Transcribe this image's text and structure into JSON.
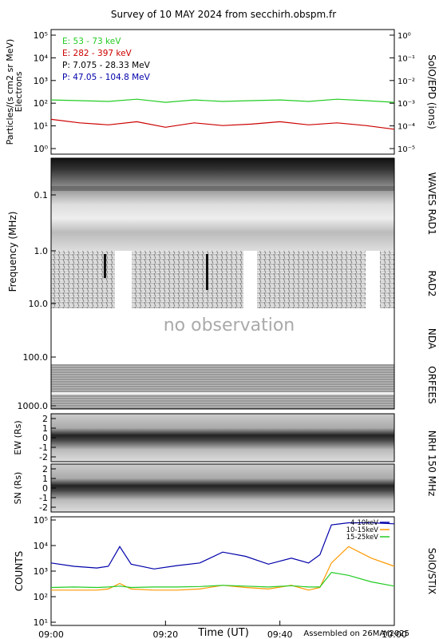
{
  "title": "Survey of 10 MAY 2024 from secchirh.obspm.fr",
  "footer": {
    "xlabel": "Time (UT)",
    "assembled": "Assembled on 26MAY2025"
  },
  "colors": {
    "green": "#22cc22",
    "red": "#cc0000",
    "black": "#000000",
    "blue": "#0000aa",
    "orange": "#ff9900"
  },
  "panels": {
    "epd": {
      "ylabel_left_1": "Particles/(s cm2 sr MeV)",
      "ylabel_left_2": "Electrons",
      "ylabel_right": "SolO/EPD (ions)",
      "legend": [
        {
          "text": "E: 53 - 73 keV",
          "color": "#22cc22"
        },
        {
          "text": "E: 282 - 397 keV",
          "color": "#cc0000"
        },
        {
          "text": "P: 7.075 - 28.33 MeV",
          "color": "#000000"
        },
        {
          "text": "P: 47.05 - 104.8 MeV",
          "color": "#0000aa"
        }
      ],
      "left_ticks": [
        "10⁰",
        "10¹",
        "10²",
        "10³",
        "10⁴",
        "10⁵"
      ],
      "right_ticks": [
        "10⁻⁵",
        "10⁻⁴",
        "10⁻³",
        "10⁻²",
        "10⁻¹",
        "10⁰"
      ]
    },
    "radio": {
      "ylabel": "Frequency (MHz)",
      "freq_ticks": [
        "0.1",
        "1.0",
        "10.0",
        "100.0",
        "1000.0"
      ],
      "no_obs": "no observation",
      "instr": [
        "WAVES RAD1",
        "RAD2",
        "NDA",
        "ORFEES"
      ]
    },
    "nrh": {
      "ew_label": "EW (Rs)",
      "sn_label": "SN (Rs)",
      "ticks": [
        "2",
        "1",
        "0",
        "-1",
        "-2"
      ],
      "instr": "NRH 150 MHz"
    },
    "stix": {
      "ylabel": "COUNTS",
      "instr": "SolO/STIX",
      "ticks": [
        "10¹",
        "10²",
        "10³",
        "10⁴",
        "10⁵"
      ],
      "legend": [
        {
          "text": "4-10keV",
          "color": "#0000aa"
        },
        {
          "text": "10-15keV",
          "color": "#ff9900"
        },
        {
          "text": "15-25keV",
          "color": "#22cc22"
        }
      ]
    }
  },
  "x_ticks": [
    "09:00",
    "09:20",
    "09:40",
    "10:00"
  ],
  "chart_data": [
    {
      "type": "line",
      "title": "Survey of 10 MAY 2024 from secchirh.obspm.fr",
      "ylabel": "Particles/(s cm2 sr MeV) Electrons",
      "ylabel_right": "SolO/EPD (ions)",
      "log_y": true,
      "ylim": [
        1,
        100000
      ],
      "x": [
        "09:00",
        "09:05",
        "09:10",
        "09:15",
        "09:20",
        "09:25",
        "09:30",
        "09:35",
        "09:40",
        "09:45",
        "09:50",
        "09:55",
        "10:00"
      ],
      "series": [
        {
          "name": "E: 53 - 73 keV",
          "values": [
            150,
            140,
            130,
            160,
            120,
            150,
            130,
            140,
            150,
            130,
            160,
            140,
            120
          ]
        },
        {
          "name": "E: 282 - 397 keV",
          "values": [
            25,
            18,
            15,
            20,
            12,
            18,
            14,
            16,
            20,
            15,
            18,
            14,
            10
          ]
        }
      ]
    },
    {
      "type": "line",
      "title": "SolO/STIX",
      "ylabel": "COUNTS",
      "xlabel": "Time (UT)",
      "log_y": true,
      "ylim": [
        10,
        100000
      ],
      "x": [
        "09:00",
        "09:04",
        "09:08",
        "09:10",
        "09:12",
        "09:14",
        "09:18",
        "09:22",
        "09:26",
        "09:30",
        "09:34",
        "09:38",
        "09:42",
        "09:45",
        "09:47",
        "09:49",
        "09:52",
        "09:56",
        "10:00"
      ],
      "series": [
        {
          "name": "4-10keV",
          "values": [
            2000,
            1500,
            1300,
            1500,
            8000,
            1800,
            1200,
            1600,
            2000,
            5000,
            3500,
            1800,
            3000,
            2000,
            4000,
            50000,
            60000,
            60000,
            55000
          ]
        },
        {
          "name": "10-15keV",
          "values": [
            200,
            200,
            200,
            220,
            350,
            220,
            200,
            200,
            220,
            300,
            250,
            220,
            300,
            200,
            250,
            2000,
            8000,
            3000,
            1500
          ]
        },
        {
          "name": "15-25keV",
          "values": [
            250,
            260,
            250,
            260,
            280,
            250,
            260,
            260,
            270,
            300,
            280,
            260,
            290,
            260,
            260,
            900,
            700,
            400,
            280
          ]
        }
      ]
    }
  ]
}
